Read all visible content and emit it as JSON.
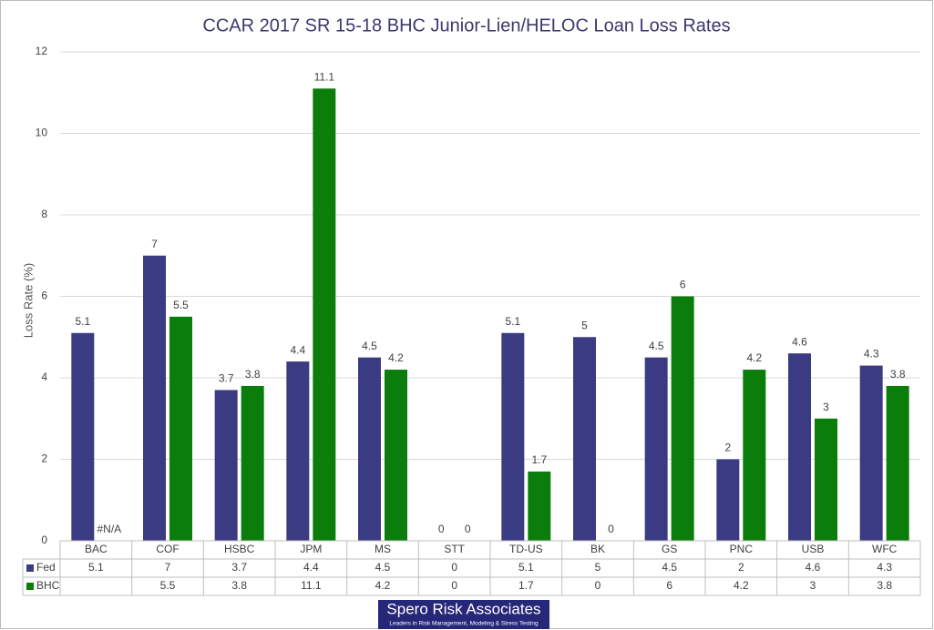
{
  "chart_data": {
    "type": "bar",
    "title": "CCAR 2017 SR 15-18 BHC Junior-Lien/HELOC Loan Loss Rates",
    "y_label": "Loss Rate (%)",
    "categories": [
      "BAC",
      "COF",
      "HSBC",
      "JPM",
      "MS",
      "STT",
      "TD-US",
      "BK",
      "GS",
      "PNC",
      "USB",
      "WFC"
    ],
    "series": [
      {
        "name": "Fed",
        "color": "#3b3b84",
        "values": [
          5.1,
          7,
          3.7,
          4.4,
          4.5,
          0,
          5.1,
          5,
          4.5,
          2,
          4.6,
          4.3
        ]
      },
      {
        "name": "BHC",
        "color": "#0b7d0b",
        "values": [
          null,
          5.5,
          3.8,
          11.1,
          4.2,
          0,
          1.7,
          0,
          6,
          4.2,
          3,
          3.8
        ],
        "value_labels": [
          "#N/A",
          "5.5",
          "3.8",
          "11.1",
          "4.2",
          "0",
          "1.7",
          "0",
          "6",
          "4.2",
          "3",
          "3.8"
        ]
      }
    ],
    "ylim": [
      0,
      12
    ],
    "yticks": [
      0,
      2,
      4,
      6,
      8,
      10,
      12
    ],
    "grid": true,
    "data_table": true
  },
  "footer": {
    "name": "Spero Risk Associates",
    "tagline": "Leaders in Risk Management, Modeling & Stress Testing"
  }
}
